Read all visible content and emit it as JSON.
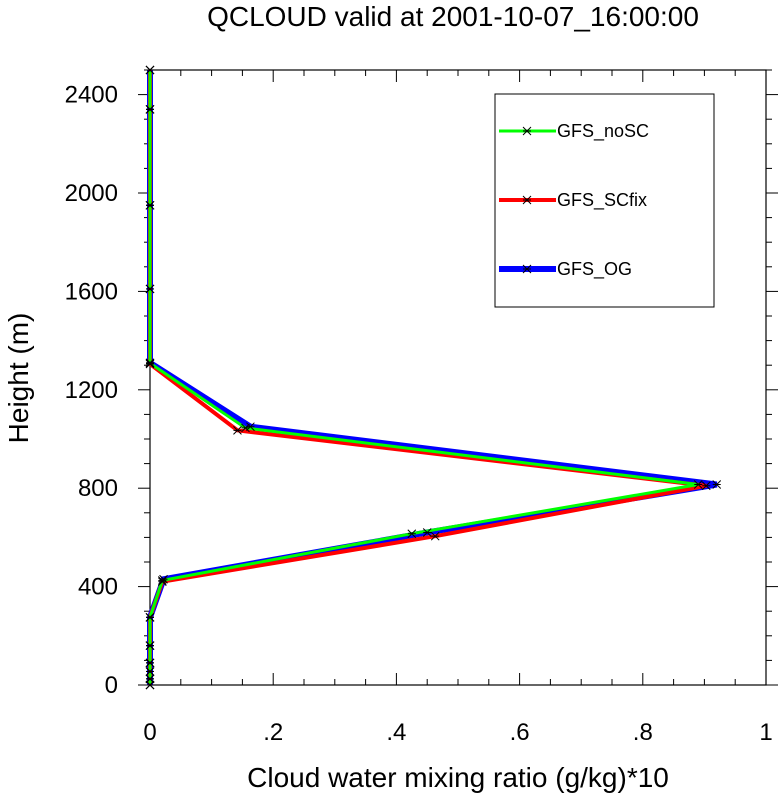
{
  "chart_data": {
    "type": "line",
    "title": "QCLOUD valid at 2001-10-07_16:00:00",
    "xlabel": "Cloud water mixing ratio (g/kg)*10",
    "ylabel": "Height (m)",
    "xlim": [
      0,
      1
    ],
    "ylim": [
      0,
      2500
    ],
    "x_ticks": [
      {
        "value": 0,
        "label": "0"
      },
      {
        "value": 0.2,
        "label": ".2"
      },
      {
        "value": 0.4,
        "label": ".4"
      },
      {
        "value": 0.6,
        "label": ".6"
      },
      {
        "value": 0.8,
        "label": ".8"
      },
      {
        "value": 1.0,
        "label": "1"
      }
    ],
    "y_ticks": [
      {
        "value": 0,
        "label": "0"
      },
      {
        "value": 400,
        "label": "400"
      },
      {
        "value": 800,
        "label": "800"
      },
      {
        "value": 1200,
        "label": "1200"
      },
      {
        "value": 1600,
        "label": "1600"
      },
      {
        "value": 2000,
        "label": "2000"
      },
      {
        "value": 2400,
        "label": "2400"
      }
    ],
    "grid": false,
    "legend_position": "top-right",
    "series": [
      {
        "name": "GFS_OG",
        "color": "#0000ff",
        "points": [
          [
            0,
            0
          ],
          [
            0,
            25
          ],
          [
            0,
            55
          ],
          [
            0,
            90
          ],
          [
            0,
            160
          ],
          [
            0,
            275
          ],
          [
            0.022,
            430
          ],
          [
            0.45,
            620
          ],
          [
            0.92,
            815
          ],
          [
            0.163,
            1050
          ],
          [
            0,
            1310
          ],
          [
            0,
            1610
          ],
          [
            0,
            1950
          ],
          [
            0,
            2340
          ],
          [
            0,
            2500
          ]
        ]
      },
      {
        "name": "GFS_SCfix",
        "color": "#ff0000",
        "points": [
          [
            0,
            0
          ],
          [
            0,
            25
          ],
          [
            0,
            55
          ],
          [
            0,
            90
          ],
          [
            0,
            160
          ],
          [
            0,
            275
          ],
          [
            0.02,
            420
          ],
          [
            0.463,
            605
          ],
          [
            0.903,
            810
          ],
          [
            0.142,
            1035
          ],
          [
            0,
            1305
          ],
          [
            0,
            1610
          ],
          [
            0,
            1950
          ],
          [
            0,
            2340
          ],
          [
            0,
            2500
          ]
        ]
      },
      {
        "name": "GFS_noSC",
        "color": "#00ff00",
        "points": [
          [
            0,
            0
          ],
          [
            0,
            25
          ],
          [
            0,
            55
          ],
          [
            0,
            90
          ],
          [
            0,
            160
          ],
          [
            0,
            275
          ],
          [
            0.02,
            425
          ],
          [
            0.425,
            615
          ],
          [
            0.89,
            815
          ],
          [
            0.155,
            1045
          ],
          [
            0,
            1308
          ],
          [
            0,
            1610
          ],
          [
            0,
            1950
          ],
          [
            0,
            2340
          ],
          [
            0,
            2500
          ]
        ]
      }
    ],
    "legend_order": [
      "GFS_noSC",
      "GFS_SCfix",
      "GFS_OG"
    ]
  }
}
